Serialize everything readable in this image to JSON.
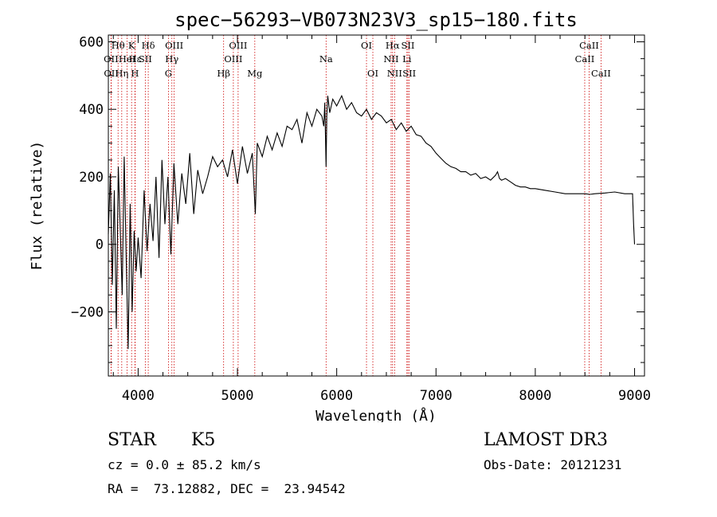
{
  "chart_data": {
    "type": "line",
    "title": "spec−56293−VB073N23V3_sp15−180.fits",
    "xlabel": "Wavelength (Å)",
    "ylabel": "Flux (relative)",
    "xlim": [
      3700,
      9100
    ],
    "ylim": [
      -390,
      620
    ],
    "x_ticks": [
      4000,
      5000,
      6000,
      7000,
      8000,
      9000
    ],
    "y_ticks": [
      -200,
      0,
      200,
      400,
      600
    ],
    "y_tick_labels": [
      "−200",
      "0",
      "200",
      "400",
      "600"
    ],
    "series": [
      {
        "name": "flux",
        "x": [
          3700,
          3720,
          3740,
          3760,
          3780,
          3800,
          3820,
          3840,
          3860,
          3880,
          3900,
          3920,
          3940,
          3960,
          3980,
          4000,
          4030,
          4060,
          4090,
          4120,
          4150,
          4180,
          4210,
          4240,
          4270,
          4300,
          4330,
          4360,
          4400,
          4440,
          4480,
          4520,
          4560,
          4600,
          4650,
          4700,
          4750,
          4800,
          4850,
          4900,
          4950,
          5000,
          5050,
          5100,
          5150,
          5180,
          5200,
          5250,
          5300,
          5350,
          5400,
          5450,
          5500,
          5550,
          5600,
          5650,
          5700,
          5750,
          5800,
          5850,
          5870,
          5880,
          5893,
          5900,
          5910,
          5930,
          5960,
          6000,
          6050,
          6100,
          6150,
          6200,
          6250,
          6300,
          6350,
          6400,
          6450,
          6500,
          6550,
          6600,
          6650,
          6700,
          6750,
          6800,
          6850,
          6900,
          6950,
          7000,
          7050,
          7100,
          7150,
          7200,
          7250,
          7300,
          7350,
          7400,
          7450,
          7500,
          7550,
          7600,
          7620,
          7640,
          7660,
          7700,
          7750,
          7800,
          7850,
          7900,
          7950,
          8000,
          8100,
          8200,
          8300,
          8400,
          8500,
          8550,
          8600,
          8700,
          8800,
          8900,
          8980,
          8990,
          9000
        ],
        "y": [
          30,
          210,
          -120,
          160,
          -250,
          230,
          40,
          -150,
          260,
          -40,
          -310,
          120,
          -200,
          40,
          -80,
          20,
          -100,
          160,
          -20,
          120,
          10,
          200,
          -40,
          250,
          60,
          200,
          -30,
          240,
          60,
          210,
          120,
          270,
          90,
          220,
          150,
          200,
          260,
          230,
          250,
          200,
          280,
          180,
          290,
          210,
          270,
          90,
          300,
          260,
          320,
          280,
          330,
          290,
          350,
          340,
          370,
          300,
          390,
          350,
          400,
          380,
          350,
          420,
          230,
          380,
          440,
          390,
          430,
          410,
          440,
          400,
          420,
          390,
          380,
          400,
          370,
          390,
          380,
          360,
          370,
          340,
          360,
          335,
          350,
          325,
          320,
          300,
          290,
          270,
          255,
          240,
          230,
          225,
          215,
          215,
          205,
          210,
          195,
          200,
          190,
          205,
          215,
          195,
          190,
          195,
          185,
          175,
          170,
          170,
          165,
          165,
          160,
          155,
          150,
          150,
          150,
          148,
          150,
          152,
          155,
          150,
          150,
          60,
          0
        ]
      }
    ],
    "lines": [
      {
        "label": "Hθ",
        "x": 3798,
        "row": 1
      },
      {
        "label": "OII",
        "x": 3727,
        "row": 2
      },
      {
        "label": "OII",
        "x": 3729,
        "row": 3
      },
      {
        "label": "K",
        "x": 3934,
        "row": 1
      },
      {
        "label": "Hε",
        "x": 3970,
        "row": 2
      },
      {
        "label": "Hη",
        "x": 3835,
        "row": 3
      },
      {
        "label": "HeI",
        "x": 3889,
        "row": 2
      },
      {
        "label": "SII",
        "x": 4072,
        "row": 2
      },
      {
        "label": "H",
        "x": 3968,
        "row": 3
      },
      {
        "label": "Hδ",
        "x": 4102,
        "row": 1
      },
      {
        "label": "OIII",
        "x": 4363,
        "row": 1
      },
      {
        "label": "Hγ",
        "x": 4340,
        "row": 2
      },
      {
        "label": "G",
        "x": 4305,
        "row": 3
      },
      {
        "label": "OIII",
        "x": 5007,
        "row": 1
      },
      {
        "label": "OIII",
        "x": 4959,
        "row": 2
      },
      {
        "label": "Hβ",
        "x": 4861,
        "row": 3
      },
      {
        "label": "Mg",
        "x": 5175,
        "row": 3
      },
      {
        "label": "Na",
        "x": 5893,
        "row": 2
      },
      {
        "label": "OI",
        "x": 6300,
        "row": 1
      },
      {
        "label": "OI",
        "x": 6364,
        "row": 3
      },
      {
        "label": "Hα",
        "x": 6563,
        "row": 1
      },
      {
        "label": "SII",
        "x": 6717,
        "row": 1
      },
      {
        "label": "NII",
        "x": 6548,
        "row": 2
      },
      {
        "label": "Li",
        "x": 6707,
        "row": 2
      },
      {
        "label": "NII",
        "x": 6583,
        "row": 3
      },
      {
        "label": "SII",
        "x": 6731,
        "row": 3
      },
      {
        "label": "CaII",
        "x": 8542,
        "row": 1
      },
      {
        "label": "CaII",
        "x": 8498,
        "row": 2
      },
      {
        "label": "CaII",
        "x": 8662,
        "row": 3
      }
    ]
  },
  "info": {
    "object_class": "STAR",
    "subclass": "K5",
    "survey": "LAMOST DR3",
    "cz": "cz = 0.0 ± 85.2 km/s",
    "obs_date": "Obs-Date: 20121231",
    "radec": "RA =  73.12882, DEC =  23.94542"
  },
  "colors": {
    "axis": "#000000",
    "spectrum": "#000000",
    "line_marker": "#cc0000"
  }
}
